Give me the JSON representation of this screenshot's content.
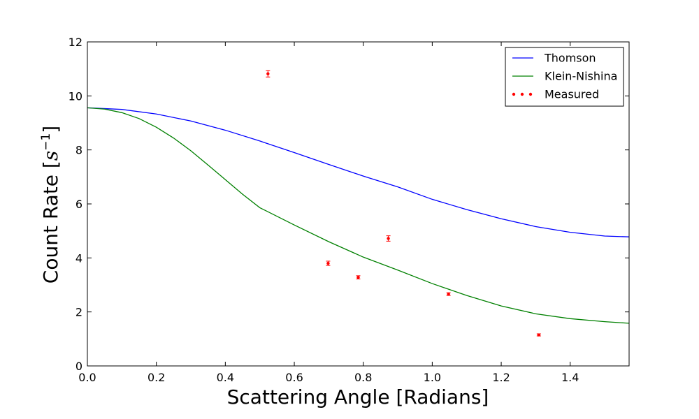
{
  "chart_data": {
    "type": "line",
    "title": "",
    "xlabel": "Scattering Angle [Radians]",
    "ylabel_main": "Count Rate [",
    "ylabel_s": "s",
    "ylabel_exp": "−1",
    "ylabel_close": "]",
    "xlim": [
      0.0,
      1.5708
    ],
    "ylim": [
      0,
      12
    ],
    "x_ticks": [
      0.0,
      0.2,
      0.4,
      0.6,
      0.8,
      1.0,
      1.2,
      1.4
    ],
    "x_tick_labels": [
      "0.0",
      "0.2",
      "0.4",
      "0.6",
      "0.8",
      "1.0",
      "1.2",
      "1.4"
    ],
    "y_ticks": [
      0,
      2,
      4,
      6,
      8,
      10,
      12
    ],
    "y_tick_labels": [
      "0",
      "2",
      "4",
      "6",
      "8",
      "10",
      "12"
    ],
    "grid": false,
    "legend_position": "top-right",
    "series": [
      {
        "name": "Thomson",
        "kind": "line",
        "color": "#0000ff",
        "x": [
          0.0,
          0.1,
          0.2,
          0.3,
          0.4,
          0.5,
          0.6,
          0.7,
          0.8,
          0.9,
          1.0,
          1.1,
          1.2,
          1.3,
          1.4,
          1.5,
          1.5708
        ],
        "y": [
          9.56,
          9.5,
          9.33,
          9.07,
          8.73,
          8.33,
          7.9,
          7.46,
          7.03,
          6.63,
          6.17,
          5.79,
          5.45,
          5.16,
          4.95,
          4.81,
          4.78
        ]
      },
      {
        "name": "Klein-Nishina",
        "kind": "line",
        "color": "#008000",
        "x": [
          0.0,
          0.05,
          0.1,
          0.15,
          0.2,
          0.25,
          0.3,
          0.35,
          0.4,
          0.45,
          0.5,
          0.6,
          0.7,
          0.8,
          0.9,
          1.0,
          1.1,
          1.2,
          1.3,
          1.4,
          1.5,
          1.5708
        ],
        "y": [
          9.56,
          9.51,
          9.38,
          9.16,
          8.84,
          8.44,
          7.97,
          7.44,
          6.9,
          6.36,
          5.86,
          5.22,
          4.6,
          4.03,
          3.55,
          3.05,
          2.61,
          2.22,
          1.93,
          1.75,
          1.64,
          1.58
        ]
      },
      {
        "name": "Measured",
        "kind": "errorbar",
        "color": "#ff0000",
        "x": [
          0.5236,
          0.6981,
          0.7854,
          0.8727,
          1.0472,
          1.309
        ],
        "y": [
          10.82,
          3.8,
          3.28,
          4.72,
          2.66,
          1.15
        ],
        "err": [
          0.12,
          0.08,
          0.06,
          0.1,
          0.05,
          0.04
        ]
      }
    ]
  }
}
